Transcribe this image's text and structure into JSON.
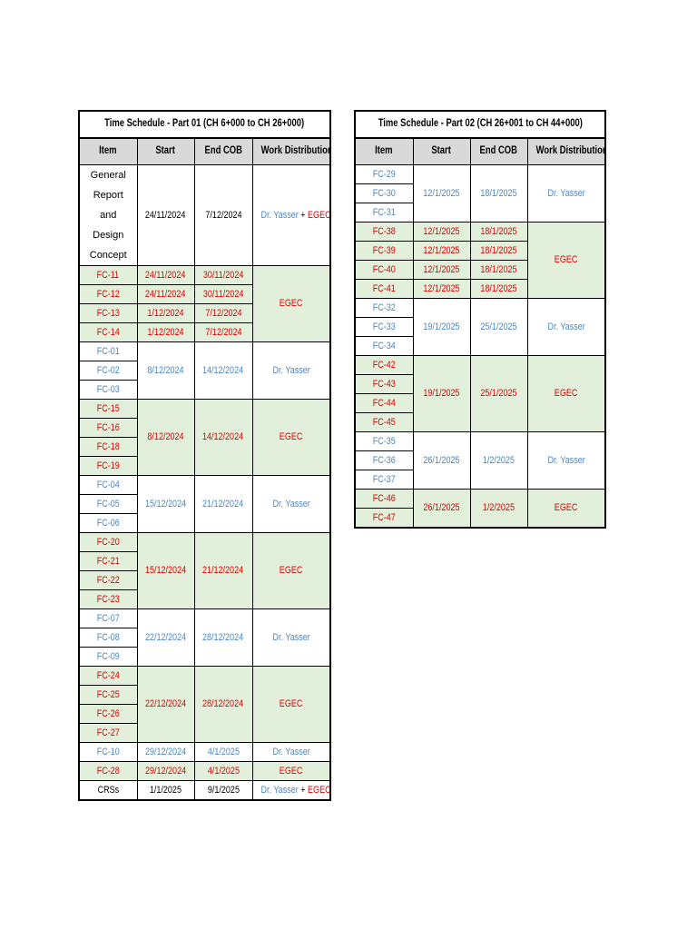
{
  "part1": {
    "title": "Time Schedule - Part 01 (CH 6+000 to CH 26+000)",
    "headers": [
      "Item",
      "Start",
      "End COB",
      "Work Distribution"
    ],
    "groups": [
      {
        "items": [
          "General Report and Design Concept"
        ],
        "start": "24/11/2024",
        "end": "7/12/2024",
        "owner": [
          "Dr. Yasser",
          " + ",
          "EGEC"
        ],
        "color": "black",
        "bg": "white"
      },
      {
        "items": [
          "FC-11",
          "FC-12",
          "FC-13",
          "FC-14"
        ],
        "starts": [
          "24/11/2024",
          "24/11/2024",
          "1/12/2024",
          "1/12/2024"
        ],
        "ends": [
          "30/11/2024",
          "30/11/2024",
          "7/12/2024",
          "7/12/2024"
        ],
        "owner": "EGEC",
        "color": "red",
        "bg": "green"
      },
      {
        "items": [
          "FC-01",
          "FC-02",
          "FC-03"
        ],
        "start": "8/12/2024",
        "end": "14/12/2024",
        "owner": "Dr. Yasser",
        "color": "blue",
        "bg": "white"
      },
      {
        "items": [
          "FC-15",
          "FC-16",
          "FC-18",
          "FC-19"
        ],
        "start": "8/12/2024",
        "end": "14/12/2024",
        "owner": "EGEC",
        "color": "red",
        "bg": "green"
      },
      {
        "items": [
          "FC-04",
          "FC-05",
          "FC-06"
        ],
        "start": "15/12/2024",
        "end": "21/12/2024",
        "owner": "Dr. Yasser",
        "color": "blue",
        "bg": "white"
      },
      {
        "items": [
          "FC-20",
          "FC-21",
          "FC-22",
          "FC-23"
        ],
        "start": "15/12/2024",
        "end": "21/12/2024",
        "owner": "EGEC",
        "color": "red",
        "bg": "green"
      },
      {
        "items": [
          "FC-07",
          "FC-08",
          "FC-09"
        ],
        "start": "22/12/2024",
        "end": "28/12/2024",
        "owner": "Dr. Yasser",
        "color": "blue",
        "bg": "white"
      },
      {
        "items": [
          "FC-24",
          "FC-25",
          "FC-26",
          "FC-27"
        ],
        "start": "22/12/2024",
        "end": "28/12/2024",
        "owner": "EGEC",
        "color": "red",
        "bg": "green"
      },
      {
        "items": [
          "FC-10"
        ],
        "start": "29/12/2024",
        "end": "4/1/2025",
        "owner": "Dr. Yasser",
        "color": "blue",
        "bg": "white"
      },
      {
        "items": [
          "FC-28"
        ],
        "start": "29/12/2024",
        "end": "4/1/2025",
        "owner": "EGEC",
        "color": "red",
        "bg": "green"
      },
      {
        "items": [
          "CRSs"
        ],
        "start": "1/1/2025",
        "end": "9/1/2025",
        "owner": [
          "Dr. Yasser",
          " + ",
          "EGEC"
        ],
        "color": "black",
        "bg": "white"
      }
    ]
  },
  "part2": {
    "title": "Time Schedule - Part 02 (CH 26+001 to CH 44+000)",
    "headers": [
      "Item",
      "Start",
      "End COB",
      "Work Distribution"
    ],
    "groups": [
      {
        "items": [
          "FC-29",
          "FC-30",
          "FC-31"
        ],
        "start": "12/1/2025",
        "end": "18/1/2025",
        "owner": "Dr. Yasser",
        "color": "blue",
        "bg": "white"
      },
      {
        "items": [
          "FC-38",
          "FC-39",
          "FC-40",
          "FC-41"
        ],
        "starts": [
          "12/1/2025",
          "12/1/2025",
          "12/1/2025",
          "12/1/2025"
        ],
        "ends": [
          "18/1/2025",
          "18/1/2025",
          "18/1/2025",
          "18/1/2025"
        ],
        "owner": "EGEC",
        "color": "red",
        "bg": "green"
      },
      {
        "items": [
          "FC-32",
          "FC-33",
          "FC-34"
        ],
        "start": "19/1/2025",
        "end": "25/1/2025",
        "owner": "Dr. Yasser",
        "color": "blue",
        "bg": "white"
      },
      {
        "items": [
          "FC-42",
          "FC-43",
          "FC-44",
          "FC-45"
        ],
        "start": "19/1/2025",
        "end": "25/1/2025",
        "owner": "EGEC",
        "color": "red",
        "bg": "green"
      },
      {
        "items": [
          "FC-35",
          "FC-36",
          "FC-37"
        ],
        "start": "26/1/2025",
        "end": "1/2/2025",
        "owner": "Dr. Yasser",
        "color": "blue",
        "bg": "white"
      },
      {
        "items": [
          "FC-46",
          "FC-47"
        ],
        "start": "26/1/2025",
        "end": "1/2/2025",
        "owner": "EGEC",
        "color": "red",
        "bg": "green"
      }
    ]
  }
}
